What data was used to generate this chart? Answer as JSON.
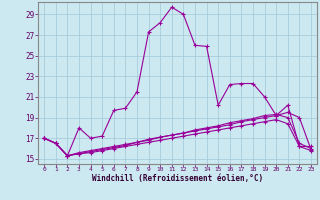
{
  "xlabel": "Windchill (Refroidissement éolien,°C)",
  "bg_color": "#cce8f0",
  "grid_color": "#a0c8d8",
  "line_color": "#990099",
  "xlim": [
    -0.5,
    23.5
  ],
  "ylim": [
    14.5,
    30.2
  ],
  "yticks": [
    15,
    17,
    19,
    21,
    23,
    25,
    27,
    29
  ],
  "xticks": [
    0,
    1,
    2,
    3,
    4,
    5,
    6,
    7,
    8,
    9,
    10,
    11,
    12,
    13,
    14,
    15,
    16,
    17,
    18,
    19,
    20,
    21,
    22,
    23
  ],
  "line1_x": [
    0,
    1,
    2,
    3,
    4,
    5,
    6,
    7,
    8,
    9,
    10,
    11,
    12,
    13,
    14,
    15,
    16,
    17,
    18,
    19,
    20,
    21,
    22,
    23
  ],
  "line1_y": [
    17.0,
    16.5,
    15.3,
    18.0,
    17.0,
    17.2,
    19.7,
    19.9,
    21.5,
    27.3,
    28.2,
    29.7,
    29.0,
    26.0,
    25.9,
    20.2,
    22.2,
    22.3,
    22.3,
    21.0,
    19.2,
    20.2,
    16.2,
    16.2
  ],
  "line2_x": [
    0,
    1,
    2,
    3,
    4,
    5,
    6,
    7,
    8,
    9,
    10,
    11,
    12,
    13,
    14,
    15,
    16,
    17,
    18,
    19,
    20,
    21,
    22,
    23
  ],
  "line2_y": [
    17.0,
    16.5,
    15.3,
    15.5,
    15.7,
    15.9,
    16.1,
    16.3,
    16.6,
    16.8,
    17.1,
    17.3,
    17.5,
    17.8,
    18.0,
    18.2,
    18.5,
    18.7,
    18.9,
    19.2,
    19.3,
    19.0,
    16.5,
    16.0
  ],
  "line3_x": [
    0,
    1,
    2,
    3,
    4,
    5,
    6,
    7,
    8,
    9,
    10,
    11,
    12,
    13,
    14,
    15,
    16,
    17,
    18,
    19,
    20,
    21,
    22,
    23
  ],
  "line3_y": [
    17.0,
    16.5,
    15.3,
    15.6,
    15.8,
    16.0,
    16.2,
    16.4,
    16.6,
    16.9,
    17.1,
    17.3,
    17.5,
    17.7,
    17.9,
    18.1,
    18.3,
    18.6,
    18.8,
    19.0,
    19.2,
    19.5,
    19.0,
    15.9
  ],
  "line4_x": [
    0,
    1,
    2,
    3,
    4,
    5,
    6,
    7,
    8,
    9,
    10,
    11,
    12,
    13,
    14,
    15,
    16,
    17,
    18,
    19,
    20,
    21,
    22,
    23
  ],
  "line4_y": [
    17.0,
    16.5,
    15.3,
    15.5,
    15.6,
    15.8,
    16.0,
    16.2,
    16.4,
    16.6,
    16.8,
    17.0,
    17.2,
    17.4,
    17.6,
    17.8,
    18.0,
    18.2,
    18.4,
    18.6,
    18.8,
    18.4,
    16.2,
    15.8
  ]
}
